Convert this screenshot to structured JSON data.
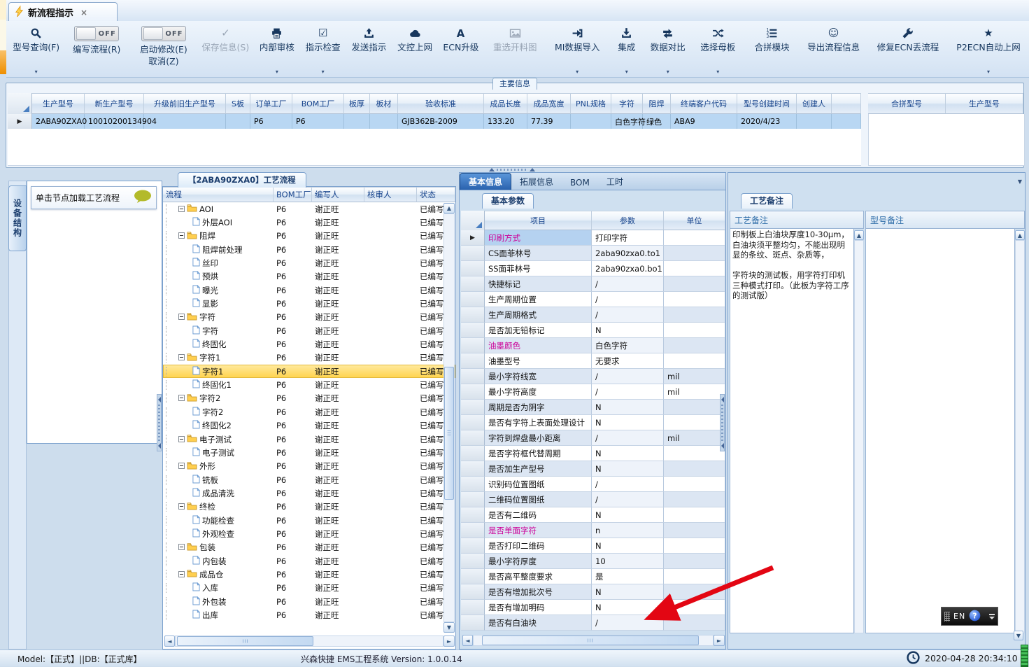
{
  "tab_bar": {
    "title": "新流程指示",
    "close": "×"
  },
  "toolbar": {
    "items": [
      {
        "id": "model-query",
        "label": "型号查询(F)",
        "icon": "search",
        "arrow": true
      },
      {
        "id": "write-process",
        "label": "编写流程(R)",
        "toggle": "OFF"
      },
      {
        "id": "start-modify",
        "label": "启动修改(E)",
        "label2": "取消(Z)",
        "toggle": "OFF"
      },
      {
        "id": "save-info",
        "label": "保存信息(S)",
        "glyph": "✓",
        "iconname": "check-icon",
        "disabled": true
      },
      {
        "id": "internal-audit",
        "label": "内部审核",
        "icon": "printer",
        "arrow": true
      },
      {
        "id": "instruction-check",
        "label": "指示检查",
        "glyph": "☑",
        "iconname": "checkbox-icon",
        "arrow": true
      },
      {
        "id": "send-instruction",
        "label": "发送指示",
        "icon": "upload"
      },
      {
        "id": "doc-control-upload",
        "label": "文控上网",
        "icon": "cloud"
      },
      {
        "id": "ecn-upgrade",
        "label": "ECN升级",
        "icon": "fontA"
      },
      {
        "id": "reselect-cutting-diagram",
        "label": "重选开料图",
        "icon": "image",
        "disabled": true
      },
      {
        "id": "mi-data-import",
        "label": "MI数据导入",
        "icon": "import",
        "arrow": true
      },
      {
        "id": "integrate",
        "label": "集成",
        "icon": "download",
        "arrow": true
      },
      {
        "id": "data-compare",
        "label": "数据对比",
        "icon": "compare",
        "arrow": true
      },
      {
        "id": "select-motherboard",
        "label": "选择母板",
        "icon": "shuffle",
        "arrow": true
      },
      {
        "id": "merge-module",
        "label": "合拼模块",
        "icon": "list"
      },
      {
        "id": "export-process-info",
        "label": "导出流程信息",
        "glyph": "☺",
        "iconname": "smiley-icon"
      },
      {
        "id": "fix-ecn-lost-process",
        "label": "修复ECN丢流程",
        "icon": "wrench"
      },
      {
        "id": "p2ecn-auto-upload",
        "label": "P2ECN自动上网",
        "glyph": "★",
        "iconname": "star-icon",
        "arrow": true
      }
    ]
  },
  "main_info": {
    "group_label": "主要信息",
    "columns": [
      "生产型号",
      "新生产型号",
      "升级前旧生产型号",
      "S板",
      "订单工厂",
      "BOM工厂",
      "板厚",
      "板材",
      "验收标准",
      "成品长度",
      "成品宽度",
      "PNL规格",
      "字符",
      "阻焊",
      "终端客户代码",
      "型号创建时间",
      "创建人",
      ""
    ],
    "row": [
      "2ABA90ZXA0",
      "10010200134904",
      "",
      "",
      "P6",
      "P6",
      "",
      "",
      "GJB362B-2009",
      "133.20",
      "77.39",
      "",
      "白色字符",
      "绿色",
      "ABA9",
      "2020/4/23",
      "",
      ""
    ],
    "right_columns": [
      "合拼型号",
      "生产型号"
    ]
  },
  "left_panel": {
    "vertical_tab": "设备结构",
    "tooltip": "单击节点加载工艺流程"
  },
  "process_tree": {
    "title": "【2ABA90ZXA0】工艺流程",
    "columns": [
      "流程",
      "BOM工厂",
      "编写人",
      "核审人",
      "状态"
    ],
    "nodes": [
      {
        "label": "AOI",
        "type": "folder",
        "bom": "P6",
        "writer": "谢正旺",
        "auditor": "",
        "status": "已编写"
      },
      {
        "label": "外层AOI",
        "type": "file",
        "bom": "P6",
        "writer": "谢正旺",
        "auditor": "",
        "status": "已编写"
      },
      {
        "label": "阻焊",
        "type": "folder",
        "bom": "P6",
        "writer": "谢正旺",
        "auditor": "",
        "status": "已编写"
      },
      {
        "label": "阻焊前处理",
        "type": "file",
        "bom": "P6",
        "writer": "谢正旺",
        "auditor": "",
        "status": "已编写"
      },
      {
        "label": "丝印",
        "type": "file",
        "bom": "P6",
        "writer": "谢正旺",
        "auditor": "",
        "status": "已编写"
      },
      {
        "label": "预烘",
        "type": "file",
        "bom": "P6",
        "writer": "谢正旺",
        "auditor": "",
        "status": "已编写"
      },
      {
        "label": "曝光",
        "type": "file",
        "bom": "P6",
        "writer": "谢正旺",
        "auditor": "",
        "status": "已编写"
      },
      {
        "label": "显影",
        "type": "file",
        "bom": "P6",
        "writer": "谢正旺",
        "auditor": "",
        "status": "已编写"
      },
      {
        "label": "字符",
        "type": "folder",
        "bom": "P6",
        "writer": "谢正旺",
        "auditor": "",
        "status": "已编写"
      },
      {
        "label": "字符",
        "type": "file",
        "bom": "P6",
        "writer": "谢正旺",
        "auditor": "",
        "status": "已编写"
      },
      {
        "label": "终固化",
        "type": "file",
        "bom": "P6",
        "writer": "谢正旺",
        "auditor": "",
        "status": "已编写"
      },
      {
        "label": "字符1",
        "type": "folder",
        "bom": "P6",
        "writer": "谢正旺",
        "auditor": "",
        "status": "已编写"
      },
      {
        "label": "字符1",
        "type": "file",
        "bom": "P6",
        "writer": "谢正旺",
        "auditor": "",
        "status": "已编写",
        "selected": true
      },
      {
        "label": "终固化1",
        "type": "file",
        "bom": "P6",
        "writer": "谢正旺",
        "auditor": "",
        "status": "已编写"
      },
      {
        "label": "字符2",
        "type": "folder",
        "bom": "P6",
        "writer": "谢正旺",
        "auditor": "",
        "status": "已编写"
      },
      {
        "label": "字符2",
        "type": "file",
        "bom": "P6",
        "writer": "谢正旺",
        "auditor": "",
        "status": "已编写"
      },
      {
        "label": "终固化2",
        "type": "file",
        "bom": "P6",
        "writer": "谢正旺",
        "auditor": "",
        "status": "已编写"
      },
      {
        "label": "电子测试",
        "type": "folder",
        "bom": "P6",
        "writer": "谢正旺",
        "auditor": "",
        "status": "已编写"
      },
      {
        "label": "电子测试",
        "type": "file",
        "bom": "P6",
        "writer": "谢正旺",
        "auditor": "",
        "status": "已编写"
      },
      {
        "label": "外形",
        "type": "folder",
        "bom": "P6",
        "writer": "谢正旺",
        "auditor": "",
        "status": "已编写"
      },
      {
        "label": "铣板",
        "type": "file",
        "bom": "P6",
        "writer": "谢正旺",
        "auditor": "",
        "status": "已编写"
      },
      {
        "label": "成品清洗",
        "type": "file",
        "bom": "P6",
        "writer": "谢正旺",
        "auditor": "",
        "status": "已编写"
      },
      {
        "label": "终检",
        "type": "folder",
        "bom": "P6",
        "writer": "谢正旺",
        "auditor": "",
        "status": "已编写"
      },
      {
        "label": "功能检查",
        "type": "file",
        "bom": "P6",
        "writer": "谢正旺",
        "auditor": "",
        "status": "已编写"
      },
      {
        "label": "外观检查",
        "type": "file",
        "bom": "P6",
        "writer": "谢正旺",
        "auditor": "",
        "status": "已编写"
      },
      {
        "label": "包装",
        "type": "folder",
        "bom": "P6",
        "writer": "谢正旺",
        "auditor": "",
        "status": "已编写"
      },
      {
        "label": "内包装",
        "type": "file",
        "bom": "P6",
        "writer": "谢正旺",
        "auditor": "",
        "status": "已编写"
      },
      {
        "label": "成品仓",
        "type": "folder",
        "bom": "P6",
        "writer": "谢正旺",
        "auditor": "",
        "status": "已编写"
      },
      {
        "label": "入库",
        "type": "file",
        "bom": "P6",
        "writer": "谢正旺",
        "auditor": "",
        "status": "已编写"
      },
      {
        "label": "外包装",
        "type": "file",
        "bom": "P6",
        "writer": "谢正旺",
        "auditor": "",
        "status": "已编写"
      },
      {
        "label": "出库",
        "type": "file",
        "bom": "P6",
        "writer": "谢正旺",
        "auditor": "",
        "status": "已编写"
      }
    ]
  },
  "detail": {
    "tabs": [
      "基本信息",
      "拓展信息",
      "BOM",
      "工时"
    ],
    "active_tab": "基本信息",
    "sub_tab": "基本参数",
    "columns": [
      "项目",
      "参数",
      "单位"
    ],
    "rows": [
      {
        "item": "印刷方式",
        "value": "打印字符",
        "unit": "",
        "magenta": true,
        "selected": true
      },
      {
        "item": "CS面菲林号",
        "value": "2aba90zxa0.to1",
        "unit": ""
      },
      {
        "item": "SS面菲林号",
        "value": "2aba90zxa0.bo1",
        "unit": ""
      },
      {
        "item": "快捷标记",
        "value": "/",
        "unit": ""
      },
      {
        "item": "生产周期位置",
        "value": "/",
        "unit": ""
      },
      {
        "item": "生产周期格式",
        "value": "/",
        "unit": ""
      },
      {
        "item": "是否加无铅标记",
        "value": "N",
        "unit": ""
      },
      {
        "item": "油墨颜色",
        "value": "白色字符",
        "unit": "",
        "magenta": true
      },
      {
        "item": "油墨型号",
        "value": "无要求",
        "unit": ""
      },
      {
        "item": "最小字符线宽",
        "value": "/",
        "unit": "mil"
      },
      {
        "item": "最小字符高度",
        "value": "/",
        "unit": "mil"
      },
      {
        "item": "周期是否为阴字",
        "value": "N",
        "unit": ""
      },
      {
        "item": "是否有字符上表面处理设计",
        "value": "N",
        "unit": ""
      },
      {
        "item": "字符到焊盘最小距离",
        "value": "/",
        "unit": "mil"
      },
      {
        "item": "是否字符框代替周期",
        "value": "N",
        "unit": ""
      },
      {
        "item": "是否加生产型号",
        "value": "N",
        "unit": ""
      },
      {
        "item": "识别码位置图纸",
        "value": "/",
        "unit": ""
      },
      {
        "item": "二维码位置图纸",
        "value": "/",
        "unit": ""
      },
      {
        "item": "是否有二维码",
        "value": "N",
        "unit": ""
      },
      {
        "item": "是否单面字符",
        "value": "n",
        "unit": "",
        "magenta": true
      },
      {
        "item": "是否打印二维码",
        "value": "N",
        "unit": ""
      },
      {
        "item": "最小字符厚度",
        "value": "10",
        "unit": ""
      },
      {
        "item": "是否高平整度要求",
        "value": "是",
        "unit": ""
      },
      {
        "item": "是否有增加批次号",
        "value": "N",
        "unit": ""
      },
      {
        "item": "是否有增加明码",
        "value": "N",
        "unit": ""
      },
      {
        "item": "是否有白油块",
        "value": "/",
        "unit": ""
      }
    ]
  },
  "remarks": {
    "tab": "工艺备注",
    "col1_title": "工艺备注",
    "col2_title": "型号备注",
    "col1_text": "印制板上白油块厚度10-30μm，白油块须平整均匀，不能出现明显的条纹、斑点、杂质等，\n\n字符块的测试板，用字符打印机三种模式打印。（此板为字符工序的测试版）",
    "col2_text": ""
  },
  "language_bar": {
    "label": "EN",
    "help": "?"
  },
  "status_bar": {
    "left": "Model:【正式】||DB:【正式库】",
    "center": "兴森快捷  EMS工程系统  Version: 1.0.0.14",
    "time": "2020-04-28 20:34:10"
  },
  "colors": {
    "accent_blue": "#2a62ae",
    "highlight_yellow": "#ffd34d",
    "magenta": "#cc0099",
    "arrow_red": "#e30613",
    "solder_green": "绿色"
  }
}
